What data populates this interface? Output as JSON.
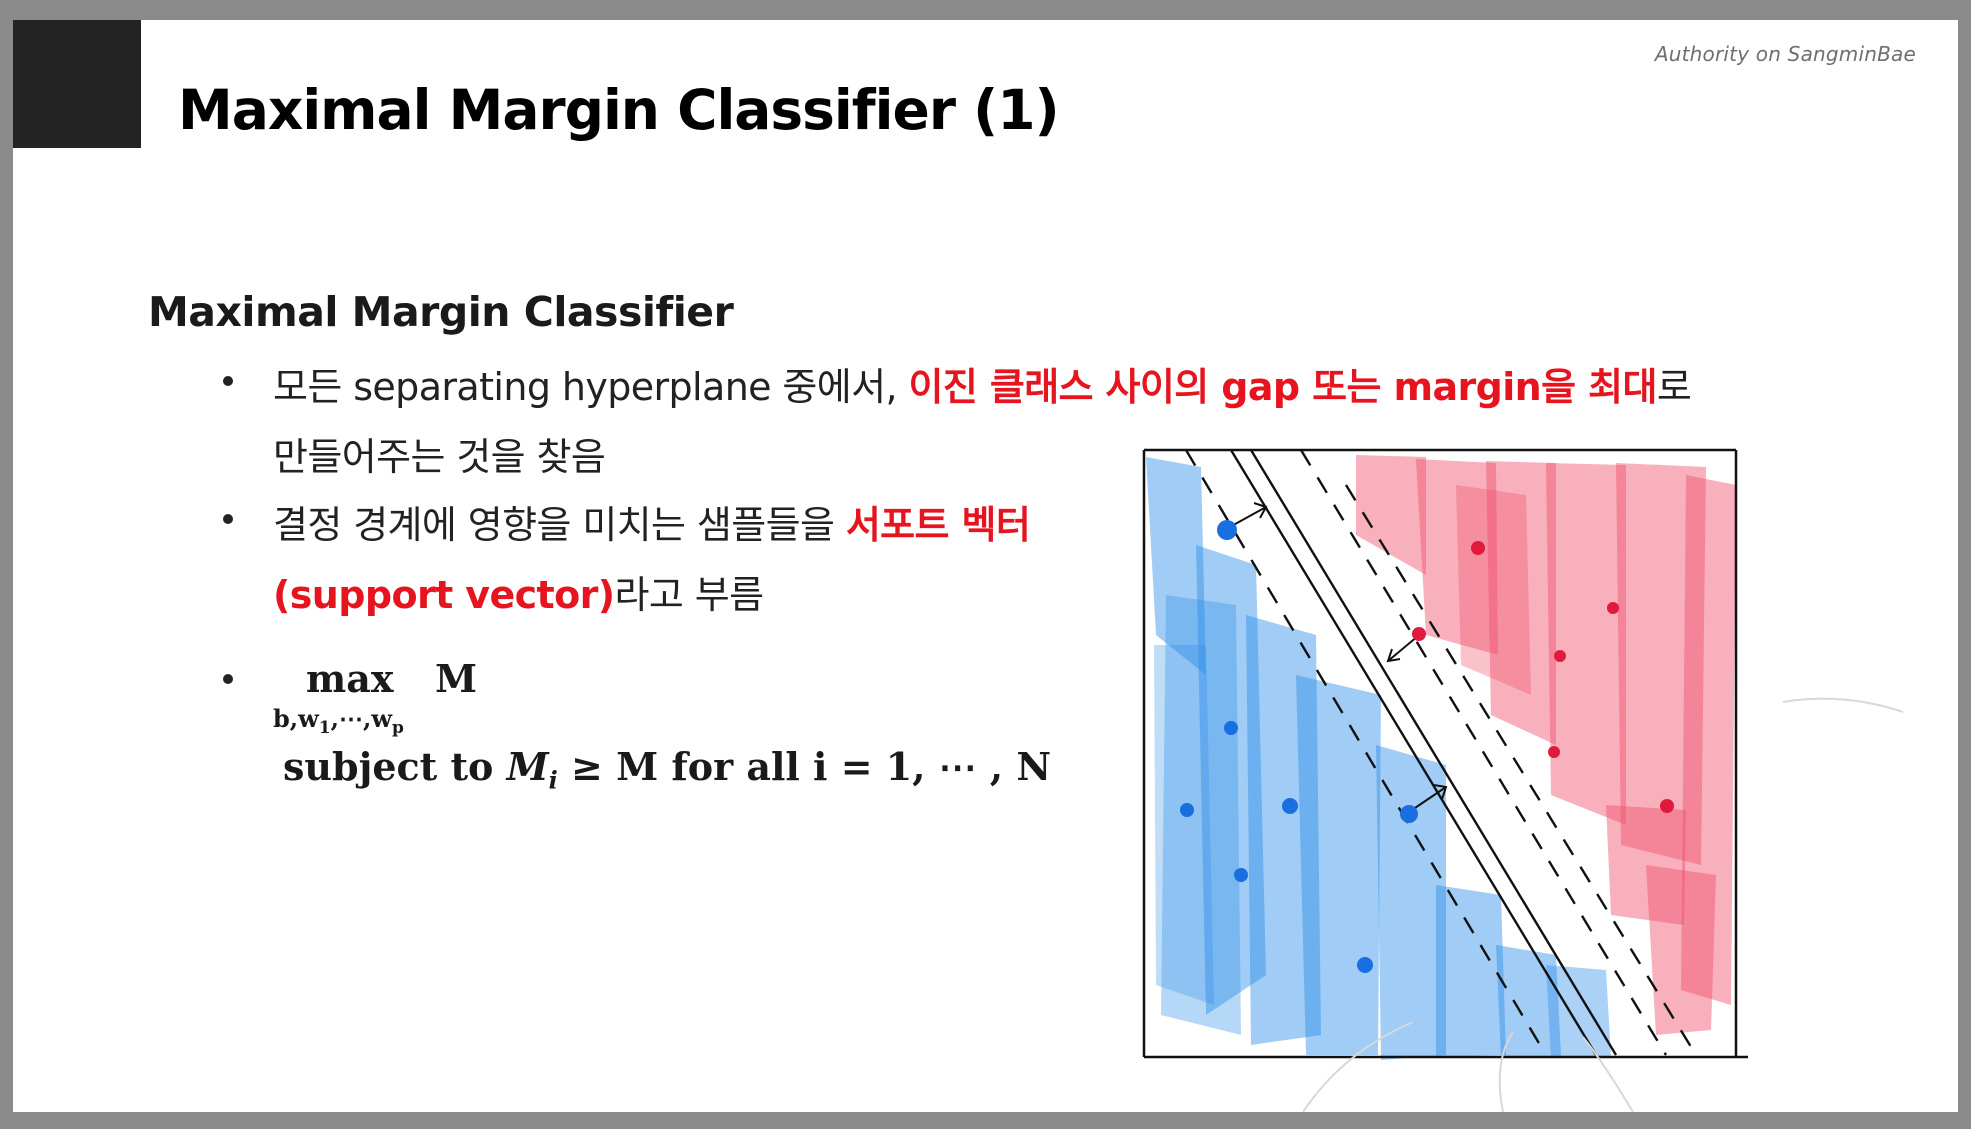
{
  "header": {
    "title": "Maximal Margin Classifier (1)",
    "authority": "Authority  on SangminBae"
  },
  "content": {
    "subtitle": "Maximal Margin Classifier",
    "bullet1": {
      "part1": "모든 separating hyperplane 중에서, ",
      "highlight": "이진 클래스 사이의 gap 또는 margin을 최대",
      "part2": "로",
      "line2": "만들어주는 것을 찾음"
    },
    "bullet2": {
      "part1": "결정 경계에 영향을 미치는 샘플들을 ",
      "highlight": "서포트 벡터",
      "highlight2": "(support vector)",
      "part2": "라고 부름"
    },
    "bullet3": {
      "max": "max",
      "M": "M",
      "sub_b": "b,w",
      "sub_1": "1",
      "sub_dots": ",⋯,w",
      "sub_p": "p",
      "subject_to": "subject to",
      "Mi_M": "M",
      "Mi_i": "i",
      "rest": "≥ M for all i = 1, ⋯ , N"
    }
  },
  "colors": {
    "blue_class": "#2e8ee8",
    "red_class": "#f0506a",
    "highlight_text": "#e6141e"
  }
}
